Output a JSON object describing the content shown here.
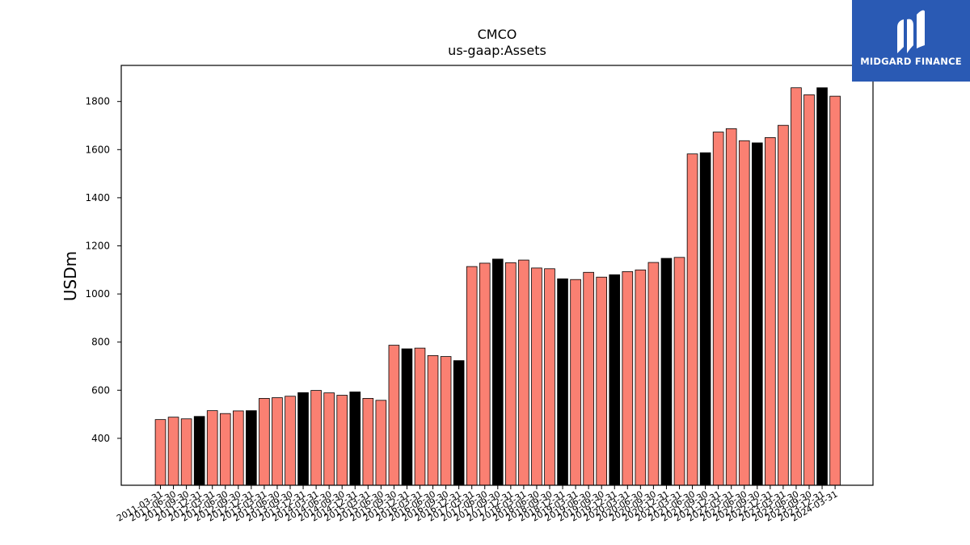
{
  "chart_data": {
    "type": "bar",
    "title": "CMCO",
    "subtitle": "us-gaap:Assets",
    "ylabel": "USDm",
    "xlabel": "",
    "ylim": [
      205,
      1950
    ],
    "yticks": [
      400,
      600,
      800,
      1000,
      1200,
      1400,
      1600,
      1800
    ],
    "grid": false,
    "colors": {
      "quarter": "#fa8072",
      "fiscal_year_end": "#000000",
      "edge": "#000000"
    },
    "categories": [
      "2011-03-31",
      "2011-06-30",
      "2011-09-30",
      "2011-12-31",
      "2012-03-31",
      "2012-06-30",
      "2012-09-30",
      "2012-12-31",
      "2013-03-31",
      "2013-06-30",
      "2013-09-30",
      "2013-12-31",
      "2014-03-31",
      "2014-06-30",
      "2014-09-30",
      "2014-12-31",
      "2015-03-31",
      "2015-06-30",
      "2015-09-30",
      "2015-12-31",
      "2016-03-31",
      "2016-06-30",
      "2016-09-30",
      "2016-12-31",
      "2017-03-31",
      "2017-06-30",
      "2017-09-30",
      "2017-12-31",
      "2018-03-31",
      "2018-06-30",
      "2018-09-30",
      "2018-12-31",
      "2019-03-31",
      "2019-06-30",
      "2019-09-30",
      "2019-12-31",
      "2020-03-31",
      "2020-06-30",
      "2020-09-30",
      "2020-12-31",
      "2021-03-31",
      "2021-06-30",
      "2021-09-30",
      "2021-12-31",
      "2022-03-31",
      "2022-06-30",
      "2022-09-30",
      "2022-12-31",
      "2023-03-31",
      "2023-06-30",
      "2023-09-30",
      "2023-12-31",
      "2024-03-31"
    ],
    "values": [
      478,
      488,
      481,
      491,
      515,
      503,
      514,
      515,
      566,
      569,
      575,
      590,
      599,
      589,
      579,
      593,
      566,
      558,
      787,
      772,
      775,
      744,
      740,
      723,
      1114,
      1128,
      1145,
      1130,
      1141,
      1108,
      1105,
      1063,
      1060,
      1090,
      1070,
      1080,
      1093,
      1100,
      1131,
      1148,
      1152,
      1582,
      1587,
      1673,
      1687,
      1637,
      1628,
      1650,
      1701,
      1857,
      1828,
      1857,
      1822
    ],
    "highlight": [
      false,
      false,
      false,
      true,
      false,
      false,
      false,
      true,
      false,
      false,
      false,
      true,
      false,
      false,
      false,
      true,
      false,
      false,
      false,
      true,
      false,
      false,
      false,
      true,
      false,
      false,
      true,
      false,
      false,
      false,
      false,
      true,
      false,
      false,
      false,
      true,
      false,
      false,
      false,
      true,
      false,
      false,
      true,
      false,
      false,
      false,
      true,
      false,
      false,
      false,
      false,
      true,
      false
    ]
  },
  "logo": {
    "text": "MIDGARD FINANCE",
    "icon": "midgard-m-icon"
  }
}
